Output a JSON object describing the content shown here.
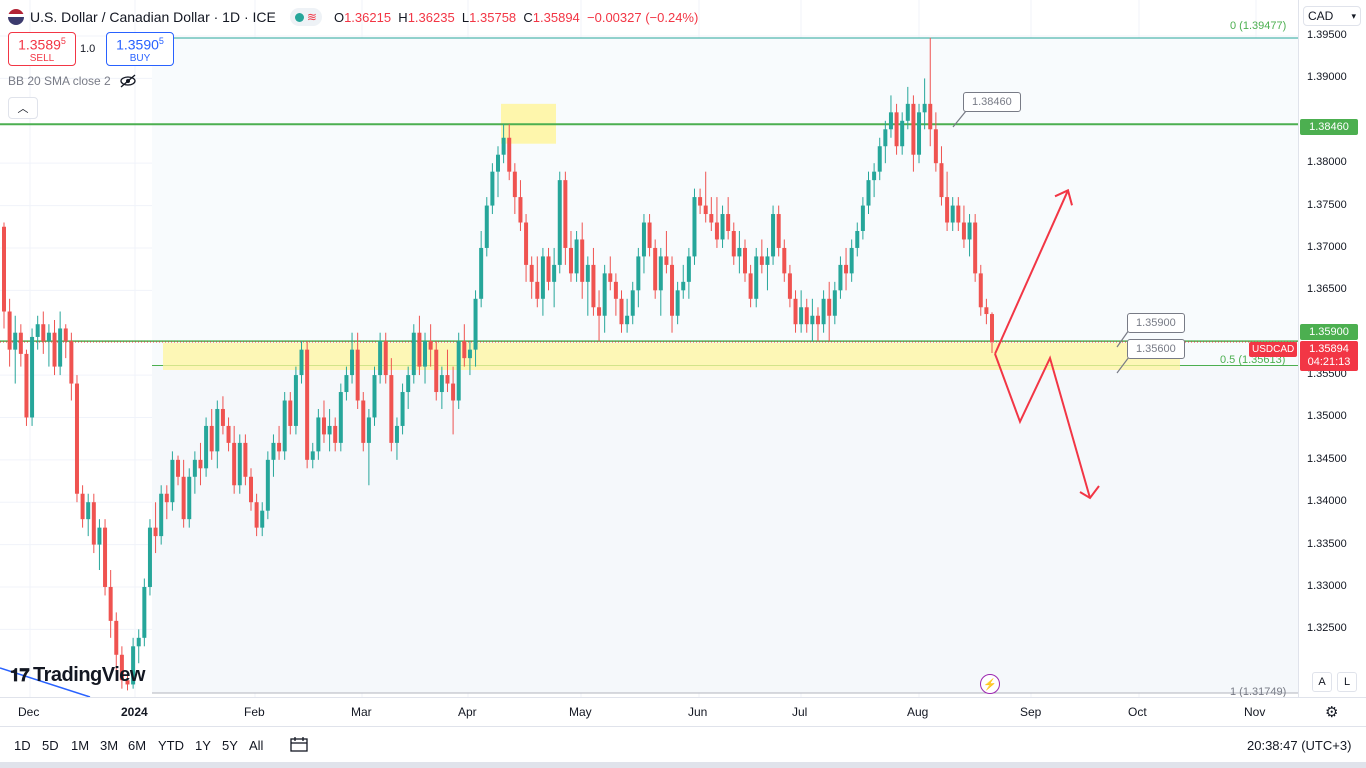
{
  "header": {
    "title": "U.S. Dollar / Canadian Dollar · 1D · ICE",
    "ohlc": {
      "o_label": "O",
      "o": "1.36215",
      "h_label": "H",
      "h": "1.36235",
      "l_label": "L",
      "l": "1.35758",
      "c_label": "C",
      "c": "1.35894",
      "change": "−0.00327 (−0.24%)"
    }
  },
  "trade": {
    "sell_price": "1.3589",
    "sell_sup": "5",
    "sell_label": "SELL",
    "spread": "1.0",
    "buy_price": "1.3590",
    "buy_sup": "5",
    "buy_label": "BUY"
  },
  "indicator": {
    "label": "BB 20 SMA close 2"
  },
  "currency": {
    "value": "CAD"
  },
  "price_axis": {
    "ticks": [
      {
        "label": "1.39500",
        "price": 1.395
      },
      {
        "label": "1.39000",
        "price": 1.39
      },
      {
        "label": "1.38000",
        "price": 1.38
      },
      {
        "label": "1.37500",
        "price": 1.375
      },
      {
        "label": "1.37000",
        "price": 1.37
      },
      {
        "label": "1.36500",
        "price": 1.365
      },
      {
        "label": "1.35500",
        "price": 1.355
      },
      {
        "label": "1.35000",
        "price": 1.35
      },
      {
        "label": "1.34500",
        "price": 1.345
      },
      {
        "label": "1.34000",
        "price": 1.34
      },
      {
        "label": "1.33500",
        "price": 1.335
      },
      {
        "label": "1.33000",
        "price": 1.33
      },
      {
        "label": "1.32500",
        "price": 1.325
      }
    ],
    "resistance_label": "1.38460",
    "support_label": "1.35900",
    "symbol": "USDCAD",
    "current_price": "1.35894",
    "countdown": "04:21:13"
  },
  "time_axis": {
    "ticks": [
      {
        "label": "Dec",
        "bold": false
      },
      {
        "label": "2024",
        "bold": true
      },
      {
        "label": "Feb",
        "bold": false
      },
      {
        "label": "Mar",
        "bold": false
      },
      {
        "label": "Apr",
        "bold": false
      },
      {
        "label": "May",
        "bold": false
      },
      {
        "label": "Jun",
        "bold": false
      },
      {
        "label": "Jul",
        "bold": false
      },
      {
        "label": "Aug",
        "bold": false
      },
      {
        "label": "Sep",
        "bold": false
      },
      {
        "label": "Oct",
        "bold": false
      },
      {
        "label": "Nov",
        "bold": false
      }
    ]
  },
  "annotations": {
    "callout_top": "1.38460",
    "callout_mid1": "1.35900",
    "callout_mid2": "1.35600",
    "fib_top": "0 (1.39477)",
    "fib_mid": "0.5 (1.35613)",
    "fib_bottom": "1 (1.31749)"
  },
  "logo": {
    "text": "TradingView"
  },
  "toolbar": {
    "ranges": [
      "1D",
      "5D",
      "1M",
      "3M",
      "6M",
      "YTD",
      "1Y",
      "5Y",
      "All"
    ],
    "clock": "20:38:47 (UTC+3)"
  },
  "axis_buttons": {
    "auto": "A",
    "log": "L"
  },
  "colors": {
    "up": "#26a69a",
    "down": "#ef5350",
    "level": "#4caf50",
    "zone": "#fff59d",
    "arrow": "#f23645"
  },
  "chart_data": {
    "type": "candlestick",
    "symbol": "USDCAD",
    "ylim": [
      1.3175,
      1.397
    ],
    "horizontal_levels": [
      1.3846,
      1.359
    ],
    "support_zone": [
      1.3556,
      1.3588
    ],
    "resistance_zone": [
      1.3823,
      1.387
    ],
    "fib": {
      "0": 1.39477,
      "0.5": 1.35613,
      "1": 1.31749
    },
    "projection": [
      1.3575,
      1.3768,
      1.3575,
      1.3495,
      1.357,
      1.3405
    ],
    "candles": [
      [
        1.3725,
        1.373,
        1.3605,
        1.3625
      ],
      [
        1.3625,
        1.364,
        1.356,
        1.358
      ],
      [
        1.358,
        1.362,
        1.354,
        1.36
      ],
      [
        1.36,
        1.361,
        1.356,
        1.3575
      ],
      [
        1.3575,
        1.358,
        1.349,
        1.35
      ],
      [
        1.35,
        1.3605,
        1.349,
        1.3595
      ],
      [
        1.3595,
        1.362,
        1.358,
        1.361
      ],
      [
        1.361,
        1.3625,
        1.3575,
        1.359
      ],
      [
        1.359,
        1.361,
        1.356,
        1.36
      ],
      [
        1.36,
        1.3615,
        1.355,
        1.356
      ],
      [
        1.356,
        1.3625,
        1.355,
        1.3605
      ],
      [
        1.3605,
        1.361,
        1.357,
        1.359
      ],
      [
        1.359,
        1.36,
        1.352,
        1.354
      ],
      [
        1.354,
        1.355,
        1.34,
        1.341
      ],
      [
        1.341,
        1.342,
        1.337,
        1.338
      ],
      [
        1.338,
        1.341,
        1.336,
        1.34
      ],
      [
        1.34,
        1.341,
        1.334,
        1.335
      ],
      [
        1.335,
        1.338,
        1.332,
        1.337
      ],
      [
        1.337,
        1.338,
        1.329,
        1.33
      ],
      [
        1.33,
        1.332,
        1.324,
        1.326
      ],
      [
        1.326,
        1.327,
        1.32,
        1.322
      ],
      [
        1.322,
        1.323,
        1.318,
        1.319
      ],
      [
        1.319,
        1.32,
        1.3178,
        1.3185
      ],
      [
        1.3185,
        1.324,
        1.318,
        1.323
      ],
      [
        1.323,
        1.325,
        1.321,
        1.324
      ],
      [
        1.324,
        1.331,
        1.323,
        1.33
      ],
      [
        1.33,
        1.338,
        1.329,
        1.337
      ],
      [
        1.337,
        1.34,
        1.334,
        1.336
      ],
      [
        1.336,
        1.342,
        1.335,
        1.341
      ],
      [
        1.341,
        1.342,
        1.338,
        1.34
      ],
      [
        1.34,
        1.346,
        1.339,
        1.345
      ],
      [
        1.345,
        1.3455,
        1.342,
        1.343
      ],
      [
        1.343,
        1.345,
        1.337,
        1.338
      ],
      [
        1.338,
        1.344,
        1.337,
        1.343
      ],
      [
        1.343,
        1.346,
        1.341,
        1.345
      ],
      [
        1.345,
        1.347,
        1.342,
        1.344
      ],
      [
        1.344,
        1.35,
        1.343,
        1.349
      ],
      [
        1.349,
        1.351,
        1.345,
        1.346
      ],
      [
        1.346,
        1.352,
        1.344,
        1.351
      ],
      [
        1.351,
        1.3525,
        1.348,
        1.349
      ],
      [
        1.349,
        1.35,
        1.346,
        1.347
      ],
      [
        1.347,
        1.349,
        1.341,
        1.342
      ],
      [
        1.342,
        1.348,
        1.341,
        1.347
      ],
      [
        1.347,
        1.348,
        1.342,
        1.343
      ],
      [
        1.343,
        1.344,
        1.339,
        1.34
      ],
      [
        1.34,
        1.341,
        1.336,
        1.337
      ],
      [
        1.337,
        1.34,
        1.336,
        1.339
      ],
      [
        1.339,
        1.346,
        1.338,
        1.345
      ],
      [
        1.345,
        1.348,
        1.343,
        1.347
      ],
      [
        1.347,
        1.349,
        1.345,
        1.346
      ],
      [
        1.346,
        1.353,
        1.345,
        1.352
      ],
      [
        1.352,
        1.353,
        1.348,
        1.349
      ],
      [
        1.349,
        1.356,
        1.348,
        1.355
      ],
      [
        1.355,
        1.359,
        1.354,
        1.358
      ],
      [
        1.358,
        1.359,
        1.344,
        1.345
      ],
      [
        1.345,
        1.347,
        1.344,
        1.346
      ],
      [
        1.346,
        1.351,
        1.345,
        1.35
      ],
      [
        1.35,
        1.352,
        1.347,
        1.348
      ],
      [
        1.348,
        1.351,
        1.346,
        1.349
      ],
      [
        1.349,
        1.35,
        1.346,
        1.347
      ],
      [
        1.347,
        1.354,
        1.346,
        1.353
      ],
      [
        1.353,
        1.356,
        1.352,
        1.355
      ],
      [
        1.355,
        1.36,
        1.354,
        1.358
      ],
      [
        1.358,
        1.36,
        1.351,
        1.352
      ],
      [
        1.352,
        1.353,
        1.346,
        1.347
      ],
      [
        1.347,
        1.351,
        1.342,
        1.35
      ],
      [
        1.35,
        1.356,
        1.349,
        1.355
      ],
      [
        1.355,
        1.36,
        1.354,
        1.359
      ],
      [
        1.359,
        1.36,
        1.354,
        1.355
      ],
      [
        1.355,
        1.357,
        1.346,
        1.347
      ],
      [
        1.347,
        1.35,
        1.345,
        1.349
      ],
      [
        1.349,
        1.354,
        1.348,
        1.353
      ],
      [
        1.353,
        1.356,
        1.351,
        1.355
      ],
      [
        1.355,
        1.361,
        1.354,
        1.36
      ],
      [
        1.36,
        1.362,
        1.355,
        1.356
      ],
      [
        1.356,
        1.36,
        1.354,
        1.359
      ],
      [
        1.359,
        1.361,
        1.356,
        1.358
      ],
      [
        1.358,
        1.359,
        1.352,
        1.353
      ],
      [
        1.353,
        1.356,
        1.351,
        1.355
      ],
      [
        1.355,
        1.358,
        1.353,
        1.354
      ],
      [
        1.354,
        1.356,
        1.348,
        1.352
      ],
      [
        1.352,
        1.36,
        1.351,
        1.359
      ],
      [
        1.359,
        1.361,
        1.356,
        1.357
      ],
      [
        1.357,
        1.359,
        1.355,
        1.358
      ],
      [
        1.358,
        1.365,
        1.356,
        1.364
      ],
      [
        1.364,
        1.372,
        1.363,
        1.37
      ],
      [
        1.37,
        1.376,
        1.369,
        1.375
      ],
      [
        1.375,
        1.38,
        1.374,
        1.379
      ],
      [
        1.379,
        1.382,
        1.376,
        1.381
      ],
      [
        1.381,
        1.3846,
        1.38,
        1.383
      ],
      [
        1.383,
        1.3846,
        1.378,
        1.379
      ],
      [
        1.379,
        1.38,
        1.374,
        1.376
      ],
      [
        1.376,
        1.378,
        1.372,
        1.373
      ],
      [
        1.373,
        1.374,
        1.366,
        1.368
      ],
      [
        1.368,
        1.369,
        1.364,
        1.366
      ],
      [
        1.366,
        1.369,
        1.363,
        1.364
      ],
      [
        1.364,
        1.37,
        1.362,
        1.369
      ],
      [
        1.369,
        1.37,
        1.365,
        1.366
      ],
      [
        1.366,
        1.37,
        1.363,
        1.368
      ],
      [
        1.368,
        1.379,
        1.367,
        1.378
      ],
      [
        1.378,
        1.379,
        1.368,
        1.37
      ],
      [
        1.37,
        1.372,
        1.366,
        1.367
      ],
      [
        1.367,
        1.372,
        1.366,
        1.371
      ],
      [
        1.371,
        1.373,
        1.364,
        1.366
      ],
      [
        1.366,
        1.369,
        1.362,
        1.368
      ],
      [
        1.368,
        1.37,
        1.362,
        1.363
      ],
      [
        1.363,
        1.365,
        1.359,
        1.362
      ],
      [
        1.362,
        1.368,
        1.36,
        1.367
      ],
      [
        1.367,
        1.369,
        1.365,
        1.366
      ],
      [
        1.366,
        1.367,
        1.362,
        1.364
      ],
      [
        1.364,
        1.365,
        1.36,
        1.361
      ],
      [
        1.361,
        1.364,
        1.36,
        1.362
      ],
      [
        1.362,
        1.366,
        1.361,
        1.365
      ],
      [
        1.365,
        1.37,
        1.363,
        1.369
      ],
      [
        1.369,
        1.374,
        1.367,
        1.373
      ],
      [
        1.373,
        1.374,
        1.369,
        1.37
      ],
      [
        1.37,
        1.371,
        1.364,
        1.365
      ],
      [
        1.365,
        1.37,
        1.362,
        1.369
      ],
      [
        1.369,
        1.372,
        1.367,
        1.368
      ],
      [
        1.368,
        1.369,
        1.36,
        1.362
      ],
      [
        1.362,
        1.366,
        1.361,
        1.365
      ],
      [
        1.365,
        1.368,
        1.364,
        1.366
      ],
      [
        1.366,
        1.37,
        1.364,
        1.369
      ],
      [
        1.369,
        1.377,
        1.368,
        1.376
      ],
      [
        1.376,
        1.377,
        1.374,
        1.375
      ],
      [
        1.375,
        1.379,
        1.373,
        1.374
      ],
      [
        1.374,
        1.376,
        1.372,
        1.373
      ],
      [
        1.373,
        1.376,
        1.37,
        1.371
      ],
      [
        1.371,
        1.375,
        1.37,
        1.374
      ],
      [
        1.374,
        1.376,
        1.371,
        1.372
      ],
      [
        1.372,
        1.373,
        1.368,
        1.369
      ],
      [
        1.369,
        1.372,
        1.367,
        1.37
      ],
      [
        1.37,
        1.371,
        1.366,
        1.367
      ],
      [
        1.367,
        1.368,
        1.363,
        1.364
      ],
      [
        1.364,
        1.37,
        1.363,
        1.369
      ],
      [
        1.369,
        1.371,
        1.367,
        1.368
      ],
      [
        1.368,
        1.37,
        1.365,
        1.369
      ],
      [
        1.369,
        1.375,
        1.368,
        1.374
      ],
      [
        1.374,
        1.375,
        1.369,
        1.37
      ],
      [
        1.37,
        1.371,
        1.366,
        1.367
      ],
      [
        1.367,
        1.368,
        1.363,
        1.364
      ],
      [
        1.364,
        1.365,
        1.36,
        1.361
      ],
      [
        1.361,
        1.365,
        1.36,
        1.363
      ],
      [
        1.363,
        1.364,
        1.36,
        1.361
      ],
      [
        1.361,
        1.364,
        1.359,
        1.362
      ],
      [
        1.362,
        1.363,
        1.359,
        1.361
      ],
      [
        1.361,
        1.365,
        1.36,
        1.364
      ],
      [
        1.364,
        1.366,
        1.359,
        1.362
      ],
      [
        1.362,
        1.366,
        1.361,
        1.365
      ],
      [
        1.365,
        1.369,
        1.364,
        1.368
      ],
      [
        1.368,
        1.37,
        1.365,
        1.367
      ],
      [
        1.367,
        1.371,
        1.366,
        1.37
      ],
      [
        1.37,
        1.373,
        1.369,
        1.372
      ],
      [
        1.372,
        1.376,
        1.371,
        1.375
      ],
      [
        1.375,
        1.379,
        1.374,
        1.378
      ],
      [
        1.378,
        1.38,
        1.376,
        1.379
      ],
      [
        1.379,
        1.383,
        1.378,
        1.382
      ],
      [
        1.382,
        1.385,
        1.38,
        1.384
      ],
      [
        1.384,
        1.388,
        1.383,
        1.386
      ],
      [
        1.386,
        1.387,
        1.381,
        1.382
      ],
      [
        1.382,
        1.386,
        1.381,
        1.385
      ],
      [
        1.385,
        1.389,
        1.384,
        1.387
      ],
      [
        1.387,
        1.388,
        1.379,
        1.381
      ],
      [
        1.381,
        1.387,
        1.38,
        1.386
      ],
      [
        1.386,
        1.39,
        1.384,
        1.387
      ],
      [
        1.387,
        1.3948,
        1.382,
        1.384
      ],
      [
        1.384,
        1.386,
        1.379,
        1.38
      ],
      [
        1.38,
        1.382,
        1.375,
        1.376
      ],
      [
        1.376,
        1.379,
        1.372,
        1.373
      ],
      [
        1.373,
        1.376,
        1.372,
        1.375
      ],
      [
        1.375,
        1.376,
        1.372,
        1.373
      ],
      [
        1.373,
        1.375,
        1.37,
        1.371
      ],
      [
        1.371,
        1.374,
        1.369,
        1.373
      ],
      [
        1.373,
        1.374,
        1.366,
        1.367
      ],
      [
        1.367,
        1.368,
        1.362,
        1.363
      ],
      [
        1.363,
        1.364,
        1.361,
        1.3622
      ],
      [
        1.3622,
        1.3624,
        1.3576,
        1.3589
      ]
    ]
  }
}
